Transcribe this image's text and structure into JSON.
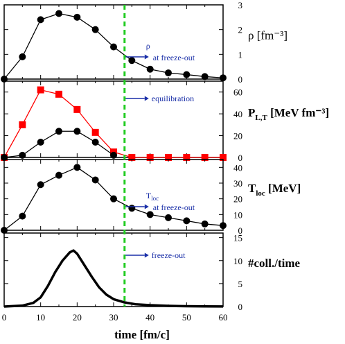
{
  "chart_data": [
    {
      "type": "line",
      "ylabel": "ρ  [fm⁻³]",
      "ylim": [
        0,
        3
      ],
      "yticks": [
        0,
        1,
        2,
        3
      ],
      "series": [
        {
          "color": "#000000",
          "marker": "circle",
          "x": [
            0,
            5,
            10,
            15,
            20,
            25,
            30,
            35,
            40,
            45,
            50,
            55,
            60
          ],
          "values": [
            0.0,
            0.9,
            2.4,
            2.65,
            2.5,
            2.0,
            1.3,
            0.75,
            0.4,
            0.25,
            0.18,
            0.1,
            0.05
          ]
        }
      ],
      "annotation": {
        "text": "ρ",
        "text2": "at freeze-out"
      }
    },
    {
      "type": "line",
      "ylabel": "P",
      "ylabel_sub": "L,T",
      "ylabel_unit": "[MeV fm⁻³]",
      "ylim": [
        0,
        70
      ],
      "yticks": [
        0,
        20,
        40,
        60
      ],
      "series": [
        {
          "color": "#ff0000",
          "marker": "square",
          "x": [
            0,
            5,
            10,
            15,
            20,
            25,
            30,
            35,
            40,
            45,
            50,
            55,
            60
          ],
          "values": [
            0,
            30,
            62,
            58,
            44,
            23,
            5,
            0,
            0,
            0,
            0,
            0,
            0
          ]
        },
        {
          "color": "#000000",
          "marker": "circle",
          "x": [
            0,
            5,
            10,
            15,
            20,
            25,
            30
          ],
          "values": [
            0,
            2,
            14,
            24,
            24,
            14,
            2
          ]
        }
      ],
      "annotation": {
        "text": "equilibration"
      }
    },
    {
      "type": "line",
      "ylabel": "T",
      "ylabel_sub": "loc",
      "ylabel_unit": "[MeV]",
      "ylim": [
        0,
        45
      ],
      "yticks": [
        0,
        10,
        20,
        30,
        40
      ],
      "series": [
        {
          "color": "#000000",
          "marker": "circle",
          "x": [
            0,
            5,
            10,
            15,
            20,
            25,
            30,
            35,
            40,
            45,
            50,
            55,
            60
          ],
          "values": [
            0,
            9,
            29,
            35,
            40,
            32,
            20,
            14,
            10,
            8,
            6,
            4,
            3
          ]
        }
      ],
      "annotation": {
        "text": "T",
        "text_sub": "loc",
        "text2": "at freeze-out"
      }
    },
    {
      "type": "line",
      "ylabel": "#coll./time",
      "ylim": [
        0,
        16
      ],
      "yticks": [
        0,
        5,
        10,
        15
      ],
      "xlabel": "time   [fm/c]",
      "xlim": [
        0,
        60
      ],
      "xticks": [
        0,
        10,
        20,
        30,
        40,
        50,
        60
      ],
      "series": [
        {
          "color": "#000000",
          "marker": "none",
          "x": [
            0,
            5,
            8,
            10,
            12,
            14,
            16,
            18,
            19,
            20,
            22,
            24,
            26,
            28,
            30,
            33,
            36,
            40,
            45,
            50,
            55,
            60
          ],
          "values": [
            0,
            0.2,
            0.8,
            2,
            4.5,
            7.5,
            10,
            11.8,
            12.2,
            11.5,
            9,
            6.5,
            4.2,
            2.6,
            1.6,
            0.9,
            0.5,
            0.3,
            0.15,
            0.08,
            0.04,
            0.02
          ]
        }
      ],
      "annotation": {
        "text": "freeze-out"
      }
    }
  ],
  "freeze_out_line": {
    "x": 33,
    "color": "#22cc22"
  }
}
